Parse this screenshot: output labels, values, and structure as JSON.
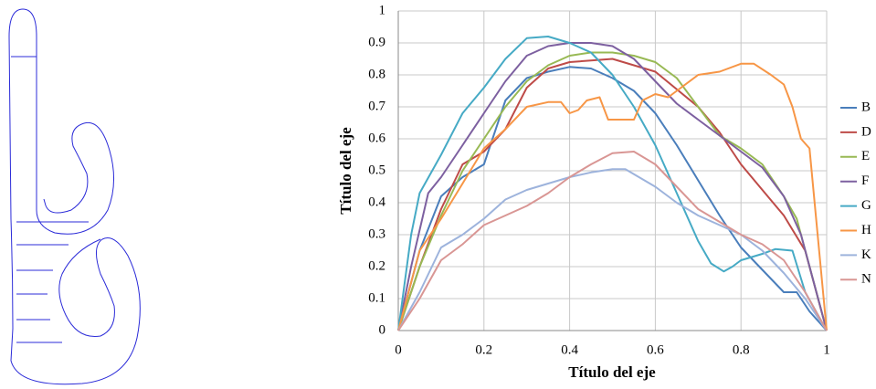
{
  "chart_data": {
    "type": "line",
    "x_label": "Título del eje",
    "y_label": "Título del eje",
    "xlim": [
      0,
      1
    ],
    "ylim": [
      0,
      1
    ],
    "xticks": [
      0,
      0.2,
      0.4,
      0.6,
      0.8,
      1
    ],
    "yticks": [
      0,
      0.1,
      0.2,
      0.3,
      0.4,
      0.5,
      0.6,
      0.7,
      0.8,
      0.9,
      1
    ],
    "grid": true,
    "legend": "right",
    "series": [
      {
        "name": "B",
        "color": "#4a7ebb",
        "x": [
          0,
          0.05,
          0.1,
          0.15,
          0.2,
          0.25,
          0.3,
          0.35,
          0.4,
          0.45,
          0.5,
          0.55,
          0.6,
          0.65,
          0.7,
          0.75,
          0.8,
          0.85,
          0.9,
          0.93,
          0.96,
          1
        ],
        "values": [
          0,
          0.25,
          0.42,
          0.48,
          0.52,
          0.72,
          0.79,
          0.81,
          0.825,
          0.82,
          0.79,
          0.75,
          0.68,
          0.58,
          0.47,
          0.36,
          0.26,
          0.19,
          0.12,
          0.12,
          0.06,
          0
        ]
      },
      {
        "name": "D",
        "color": "#be4b48",
        "x": [
          0,
          0.05,
          0.1,
          0.15,
          0.2,
          0.25,
          0.3,
          0.35,
          0.4,
          0.5,
          0.6,
          0.7,
          0.75,
          0.8,
          0.85,
          0.9,
          0.95,
          1
        ],
        "values": [
          0,
          0.2,
          0.38,
          0.52,
          0.56,
          0.63,
          0.76,
          0.82,
          0.84,
          0.85,
          0.81,
          0.7,
          0.62,
          0.52,
          0.44,
          0.36,
          0.25,
          0
        ]
      },
      {
        "name": "E",
        "color": "#98b954",
        "x": [
          0,
          0.05,
          0.1,
          0.15,
          0.2,
          0.25,
          0.3,
          0.35,
          0.4,
          0.45,
          0.5,
          0.55,
          0.6,
          0.65,
          0.7,
          0.75,
          0.8,
          0.85,
          0.9,
          0.93,
          1
        ],
        "values": [
          0,
          0.2,
          0.36,
          0.5,
          0.6,
          0.7,
          0.78,
          0.83,
          0.86,
          0.87,
          0.87,
          0.86,
          0.84,
          0.79,
          0.7,
          0.61,
          0.57,
          0.52,
          0.42,
          0.35,
          0
        ]
      },
      {
        "name": "F",
        "color": "#7d60a0",
        "x": [
          0,
          0.03,
          0.07,
          0.1,
          0.15,
          0.2,
          0.25,
          0.3,
          0.35,
          0.4,
          0.45,
          0.5,
          0.55,
          0.6,
          0.65,
          0.7,
          0.75,
          0.8,
          0.85,
          0.9,
          0.94,
          1
        ],
        "values": [
          0,
          0.2,
          0.43,
          0.48,
          0.58,
          0.68,
          0.78,
          0.86,
          0.89,
          0.9,
          0.9,
          0.89,
          0.85,
          0.78,
          0.71,
          0.66,
          0.61,
          0.56,
          0.51,
          0.42,
          0.3,
          0
        ]
      },
      {
        "name": "G",
        "color": "#46aac5",
        "x": [
          0,
          0.03,
          0.05,
          0.1,
          0.15,
          0.2,
          0.25,
          0.3,
          0.35,
          0.4,
          0.45,
          0.5,
          0.55,
          0.6,
          0.65,
          0.7,
          0.73,
          0.76,
          0.78,
          0.8,
          0.85,
          0.88,
          0.92,
          0.95,
          1
        ],
        "values": [
          0,
          0.3,
          0.43,
          0.55,
          0.68,
          0.76,
          0.85,
          0.915,
          0.92,
          0.9,
          0.87,
          0.8,
          0.7,
          0.58,
          0.43,
          0.28,
          0.21,
          0.185,
          0.2,
          0.22,
          0.24,
          0.255,
          0.25,
          0.12,
          0
        ]
      },
      {
        "name": "H",
        "color": "#f79646",
        "x": [
          0,
          0.05,
          0.1,
          0.15,
          0.2,
          0.25,
          0.3,
          0.35,
          0.38,
          0.4,
          0.42,
          0.44,
          0.47,
          0.49,
          0.52,
          0.55,
          0.57,
          0.6,
          0.63,
          0.65,
          0.7,
          0.75,
          0.8,
          0.83,
          0.87,
          0.9,
          0.92,
          0.94,
          0.96,
          1
        ],
        "values": [
          0,
          0.25,
          0.35,
          0.46,
          0.57,
          0.63,
          0.7,
          0.715,
          0.715,
          0.68,
          0.69,
          0.72,
          0.73,
          0.66,
          0.66,
          0.66,
          0.72,
          0.74,
          0.73,
          0.75,
          0.8,
          0.81,
          0.835,
          0.835,
          0.8,
          0.77,
          0.7,
          0.6,
          0.57,
          0
        ]
      },
      {
        "name": "K",
        "color": "#9db3dc",
        "x": [
          0,
          0.05,
          0.1,
          0.15,
          0.2,
          0.25,
          0.3,
          0.35,
          0.4,
          0.45,
          0.5,
          0.53,
          0.6,
          0.65,
          0.7,
          0.75,
          0.8,
          0.85,
          0.9,
          0.95,
          1
        ],
        "values": [
          0,
          0.12,
          0.26,
          0.3,
          0.35,
          0.41,
          0.44,
          0.46,
          0.48,
          0.495,
          0.505,
          0.505,
          0.45,
          0.4,
          0.36,
          0.33,
          0.3,
          0.25,
          0.18,
          0.1,
          0
        ]
      },
      {
        "name": "N",
        "color": "#d99694",
        "x": [
          0,
          0.05,
          0.1,
          0.15,
          0.2,
          0.25,
          0.3,
          0.35,
          0.4,
          0.45,
          0.5,
          0.55,
          0.6,
          0.65,
          0.7,
          0.75,
          0.8,
          0.85,
          0.9,
          0.95,
          1
        ],
        "values": [
          0,
          0.1,
          0.22,
          0.27,
          0.33,
          0.36,
          0.39,
          0.43,
          0.48,
          0.52,
          0.555,
          0.56,
          0.52,
          0.45,
          0.38,
          0.34,
          0.3,
          0.27,
          0.22,
          0.12,
          0
        ]
      }
    ]
  }
}
